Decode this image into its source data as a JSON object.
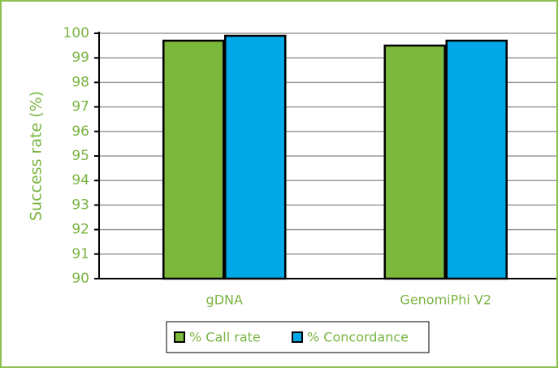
{
  "chart_data": {
    "type": "bar",
    "ylabel": "Success rate (%)",
    "categories": [
      "gDNA",
      "GenomiPhi V2"
    ],
    "series": [
      {
        "name": "% Call rate",
        "color": "#7cb83b",
        "values": [
          99.7,
          99.5
        ]
      },
      {
        "name": "% Concordance",
        "color": "#00a8e8",
        "values": [
          99.9,
          99.7
        ]
      }
    ],
    "ylim": [
      90,
      100
    ],
    "yticks": [
      90,
      91,
      92,
      93,
      94,
      95,
      96,
      97,
      98,
      99,
      100
    ],
    "grid": true,
    "legend": "bottom"
  }
}
